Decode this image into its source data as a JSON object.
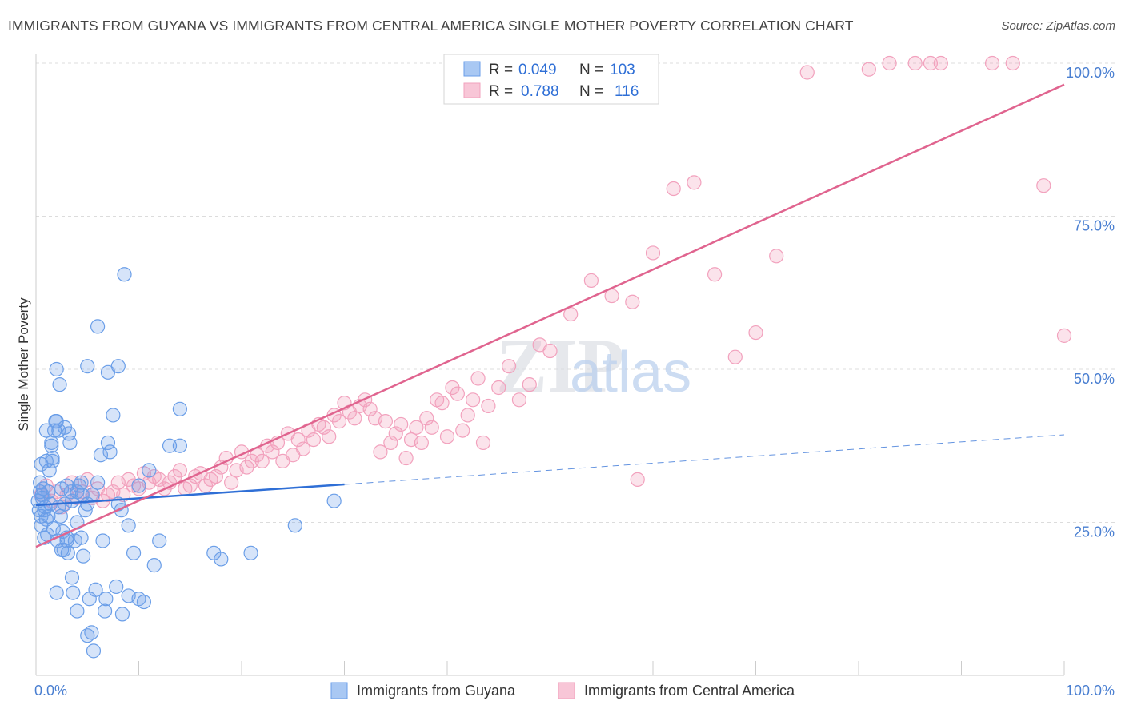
{
  "title": "IMMIGRANTS FROM GUYANA VS IMMIGRANTS FROM CENTRAL AMERICA SINGLE MOTHER POVERTY CORRELATION CHART",
  "source": "Source: ZipAtlas.com",
  "watermark": {
    "zip": "ZIP",
    "atlas": "atlas"
  },
  "stats_box": {
    "rows": [
      {
        "r_label": "R =",
        "r_value": "0.049",
        "n_label": "N =",
        "n_value": "103"
      },
      {
        "r_label": "R =",
        "r_value": "0.788",
        "n_label": "N =",
        "n_value": "116"
      }
    ]
  },
  "chart_data": {
    "type": "scatter",
    "title": "IMMIGRANTS FROM GUYANA VS IMMIGRANTS FROM CENTRAL AMERICA SINGLE MOTHER POVERTY CORRELATION CHART",
    "xlabel": "",
    "ylabel": "Single Mother Poverty",
    "xlim": [
      0,
      100
    ],
    "ylim": [
      0,
      100
    ],
    "x_tick_labels": [
      "0.0%",
      "100.0%"
    ],
    "y_ticks": [
      {
        "value": 25,
        "label": "25.0%"
      },
      {
        "value": 50,
        "label": "50.0%"
      },
      {
        "value": 75,
        "label": "75.0%"
      },
      {
        "value": 100,
        "label": "100.0%"
      }
    ],
    "grid": true,
    "legend_position": "bottom-center",
    "series": [
      {
        "name": "Immigrants from Guyana",
        "color": "#6a9ee8",
        "line_color": "#2f6fd6",
        "trend": {
          "x": [
            0,
            30
          ],
          "y": [
            27.8,
            31.2
          ],
          "dashed_to": [
            100,
            39.3
          ]
        },
        "x": [
          0.2,
          0.3,
          0.4,
          0.5,
          0.5,
          0.6,
          0.7,
          0.8,
          0.9,
          1.0,
          1.1,
          1.2,
          1.3,
          1.4,
          1.5,
          1.6,
          1.7,
          1.8,
          1.9,
          2.0,
          2.1,
          2.2,
          2.3,
          2.4,
          2.5,
          2.6,
          2.7,
          2.8,
          3.0,
          3.1,
          3.2,
          3.3,
          3.5,
          3.6,
          3.8,
          4.0,
          4.2,
          4.4,
          4.6,
          4.8,
          5.0,
          5.2,
          5.4,
          5.6,
          5.8,
          6.0,
          6.3,
          6.5,
          6.7,
          7.0,
          7.2,
          7.5,
          7.8,
          8.0,
          8.3,
          8.6,
          9.0,
          9.5,
          10.0,
          10.5,
          11.0,
          11.5,
          12.0,
          13.0,
          14.0,
          0.5,
          1.0,
          1.5,
          2.0,
          2.5,
          3.0,
          3.5,
          4.0,
          4.5,
          5.0,
          1.0,
          2.0,
          3.0,
          4.0,
          5.0,
          6.0,
          7.0,
          8.0,
          9.0,
          10.0,
          8.4,
          6.8,
          14.0,
          17.3,
          18.0,
          20.9,
          25.2,
          29.0,
          2.2,
          1.6,
          3.4,
          4.4,
          1.2,
          0.8,
          0.6,
          0.4,
          2.8,
          5.5
        ],
        "y": [
          28.5,
          27.0,
          31.5,
          26.0,
          24.5,
          29.5,
          30.5,
          22.5,
          27.5,
          35.0,
          23.0,
          30.0,
          33.5,
          28.0,
          38.0,
          35.5,
          24.0,
          40.0,
          41.5,
          50.0,
          22.0,
          27.5,
          47.5,
          26.0,
          20.5,
          23.5,
          20.5,
          40.5,
          22.0,
          20.0,
          39.5,
          38.0,
          16.0,
          13.5,
          22.0,
          25.0,
          31.0,
          22.5,
          19.5,
          27.0,
          28.0,
          12.5,
          7.0,
          4.0,
          14.0,
          31.5,
          36.0,
          22.0,
          10.5,
          38.0,
          36.5,
          42.5,
          14.5,
          28.0,
          27.0,
          65.5,
          24.5,
          20.0,
          31.0,
          12.0,
          33.5,
          18.0,
          22.0,
          37.5,
          43.5,
          34.5,
          40.0,
          37.5,
          41.5,
          30.5,
          31.0,
          28.5,
          30.0,
          29.5,
          6.5,
          25.5,
          13.5,
          22.5,
          10.5,
          50.5,
          57.0,
          49.5,
          50.5,
          13.0,
          12.5,
          10.0,
          12.5,
          37.5,
          20.0,
          19.0,
          20.0,
          24.5,
          28.5,
          40.0,
          35.0,
          30.0,
          31.5,
          26.0,
          27.0,
          29.0,
          30.0,
          28.0,
          29.5
        ],
        "n": 103
      },
      {
        "name": "Immigrants from Central America",
        "color": "#f2a1bd",
        "line_color": "#e0648f",
        "trend": {
          "x": [
            0,
            100
          ],
          "y": [
            21.0,
            96.5
          ]
        },
        "x": [
          0.5,
          1.0,
          1.5,
          2.0,
          2.5,
          3.0,
          3.5,
          4.0,
          4.5,
          5.0,
          5.5,
          6.0,
          6.5,
          7.0,
          7.5,
          8.0,
          8.5,
          9.0,
          9.5,
          10.0,
          10.5,
          11.0,
          11.5,
          12.0,
          12.5,
          13.0,
          13.5,
          14.0,
          14.5,
          15.0,
          15.5,
          16.0,
          16.5,
          17.0,
          17.5,
          18.0,
          18.5,
          19.0,
          19.5,
          20.0,
          20.5,
          21.0,
          21.5,
          22.0,
          22.5,
          23.0,
          23.5,
          24.0,
          24.5,
          25.0,
          25.5,
          26.0,
          26.5,
          27.0,
          27.5,
          28.0,
          28.5,
          29.0,
          29.5,
          30.0,
          30.5,
          31.0,
          31.5,
          32.0,
          32.5,
          33.0,
          33.5,
          34.0,
          34.5,
          35.0,
          35.5,
          36.0,
          36.5,
          37.0,
          37.5,
          38.0,
          38.5,
          39.0,
          39.5,
          40.0,
          40.5,
          41.0,
          41.5,
          42.0,
          42.5,
          43.0,
          43.5,
          44.0,
          45.0,
          46.0,
          47.0,
          48.0,
          49.0,
          50.0,
          52.0,
          54.0,
          56.0,
          58.0,
          60.0,
          62.0,
          64.0,
          66.0,
          68.0,
          70.0,
          72.0,
          75.0,
          81.0,
          83.0,
          85.5,
          87.0,
          93.0,
          95.0,
          98.0,
          88.0,
          100.0,
          58.5
        ],
        "y": [
          29.5,
          31.0,
          28.5,
          30.0,
          27.5,
          29.5,
          31.5,
          29.0,
          30.0,
          32.0,
          29.0,
          30.5,
          28.5,
          29.5,
          30.0,
          31.5,
          29.5,
          32.0,
          31.0,
          30.5,
          33.0,
          31.5,
          32.5,
          32.0,
          30.5,
          31.5,
          32.5,
          33.5,
          30.5,
          31.0,
          32.5,
          33.0,
          31.0,
          32.0,
          32.5,
          34.0,
          35.5,
          31.5,
          33.5,
          36.5,
          34.0,
          35.0,
          36.0,
          35.0,
          37.5,
          36.5,
          38.0,
          35.0,
          39.5,
          36.0,
          38.5,
          37.0,
          40.0,
          38.5,
          41.0,
          40.5,
          39.0,
          42.5,
          41.5,
          44.5,
          43.0,
          42.0,
          44.0,
          45.0,
          43.5,
          42.0,
          36.5,
          41.5,
          38.0,
          39.5,
          41.0,
          35.5,
          38.5,
          40.5,
          38.0,
          42.0,
          40.5,
          45.0,
          44.5,
          39.0,
          47.0,
          46.0,
          40.0,
          42.5,
          45.0,
          48.5,
          38.0,
          44.0,
          47.0,
          50.5,
          45.0,
          47.5,
          54.0,
          53.0,
          59.0,
          64.5,
          62.0,
          61.0,
          69.0,
          79.5,
          80.5,
          65.5,
          52.0,
          56.0,
          68.5,
          98.5,
          99.0,
          100.0,
          100.0,
          100.0,
          100.0,
          100.0,
          80.0,
          100.0,
          55.5,
          32.0
        ],
        "n": 116
      }
    ]
  }
}
